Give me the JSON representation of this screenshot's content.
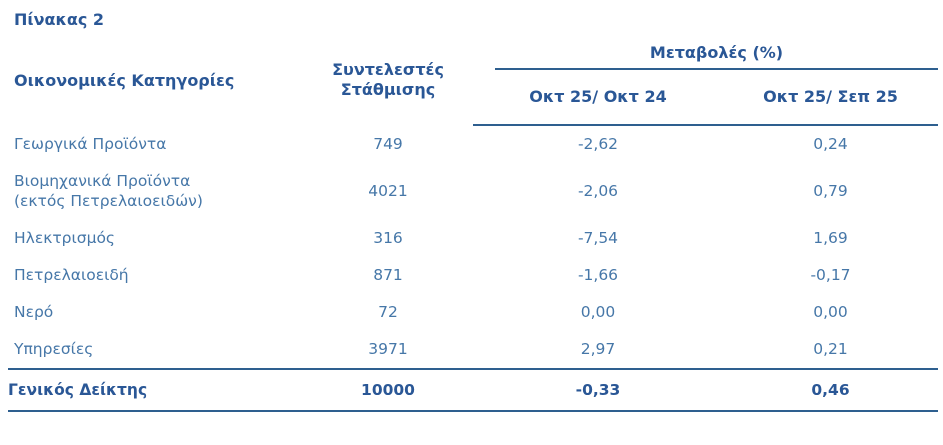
{
  "title": "Πίνακας 2",
  "colors": {
    "header_text": "#2a5796",
    "body_text": "#4677a8",
    "rule": "#2e5f8f",
    "background": "#ffffff"
  },
  "table": {
    "headers": {
      "categories": "Οικονομικές Κατηγορίες",
      "weights": "Συντελεστές\nΣτάθμισης",
      "changes_group": "Μεταβολές (%)",
      "change_yoy": "Οκτ 25/ Οκτ 24",
      "change_mom": "Οκτ 25/ Σεπ 25"
    },
    "rows": [
      {
        "label": "Γεωργικά Προϊόντα",
        "weight": "749",
        "yoy": "-2,62",
        "mom": "0,24"
      },
      {
        "label": "Βιομηχανικά Προϊόντα\n(εκτός Πετρελαιοειδών)",
        "weight": "4021",
        "yoy": "-2,06",
        "mom": "0,79"
      },
      {
        "label": "Ηλεκτρισμός",
        "weight": "316",
        "yoy": "-7,54",
        "mom": "1,69"
      },
      {
        "label": "Πετρελαιοειδή",
        "weight": "871",
        "yoy": "-1,66",
        "mom": "-0,17"
      },
      {
        "label": "Νερό",
        "weight": "72",
        "yoy": "0,00",
        "mom": "0,00"
      },
      {
        "label": "Υπηρεσίες",
        "weight": "3971",
        "yoy": "2,97",
        "mom": "0,21"
      }
    ],
    "total_row": {
      "label": "Γενικός Δείκτης",
      "weight": "10000",
      "yoy": "-0,33",
      "mom": "0,46"
    }
  }
}
